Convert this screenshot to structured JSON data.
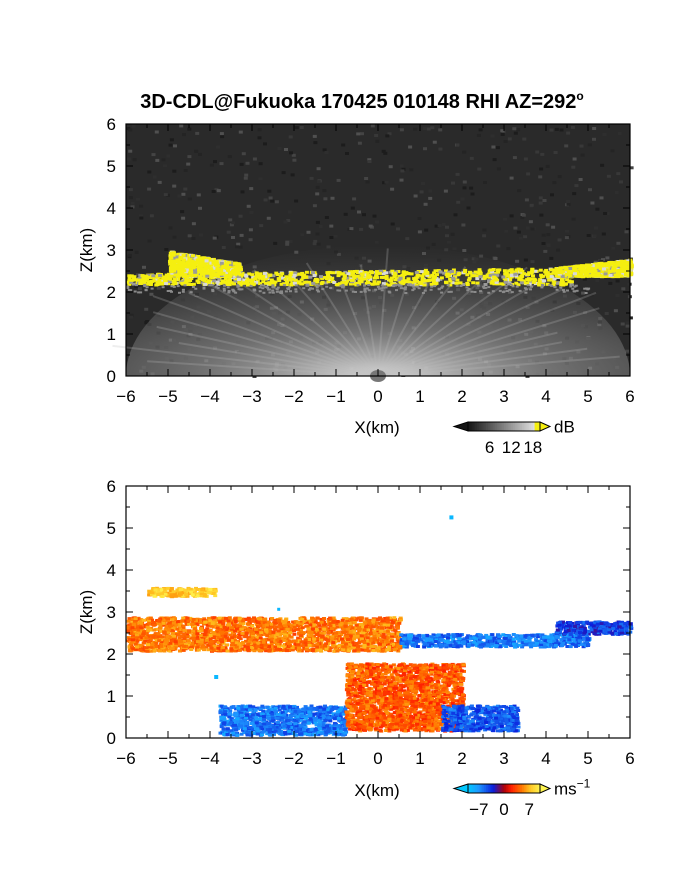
{
  "figure": {
    "title": "3D-CDL@Fukuoka 170425 010148 RHI AZ=292",
    "title_superscript": "o"
  },
  "chart_data": [
    {
      "type": "heatmap",
      "panel": "reflectivity",
      "xlabel": "X(km)",
      "ylabel": "Z(km)",
      "xlim": [
        -6,
        6
      ],
      "ylim": [
        0,
        6
      ],
      "xticks": [
        "-6",
        "-5",
        "-4",
        "-3",
        "-2",
        "-1",
        "0",
        "1",
        "2",
        "3",
        "4",
        "5",
        "6"
      ],
      "yticks": [
        "0",
        "1",
        "2",
        "3",
        "4",
        "5",
        "6"
      ],
      "colorbar": {
        "unit": "dB",
        "ticks": [
          "6",
          "12",
          "18"
        ],
        "range": [
          0,
          20
        ]
      },
      "background_color": "#2a2a2a",
      "highlight_color": "#f5ef10",
      "features": [
        {
          "name": "main layer",
          "x": [
            -6,
            4.6
          ],
          "z_bottom": [
            2.2,
            2.2
          ],
          "z_top": [
            2.45,
            2.6
          ]
        },
        {
          "name": "left elevated layer",
          "x": [
            -5,
            -3.3
          ],
          "z_bottom": [
            2.4,
            2.4
          ],
          "z_top": [
            3.0,
            2.7
          ]
        },
        {
          "name": "right elevated layer",
          "x": [
            4.2,
            6
          ],
          "z_bottom": [
            2.4,
            2.4
          ],
          "z_top": [
            2.6,
            2.8
          ]
        }
      ]
    },
    {
      "type": "heatmap",
      "panel": "doppler velocity",
      "xlabel": "X(km)",
      "ylabel": "Z(km)",
      "xlim": [
        -6,
        6
      ],
      "ylim": [
        0,
        6
      ],
      "xticks": [
        "-6",
        "-5",
        "-4",
        "-3",
        "-2",
        "-1",
        "0",
        "1",
        "2",
        "3",
        "4",
        "5",
        "6"
      ],
      "yticks": [
        "0",
        "1",
        "2",
        "3",
        "4",
        "5",
        "6"
      ],
      "colorbar": {
        "unit": "ms",
        "unit_exponent": "-1",
        "ticks": [
          "-7",
          "0",
          "7"
        ],
        "range": [
          -10,
          10
        ]
      },
      "features": [
        {
          "name": "upper layer west",
          "x": [
            -6,
            0.5
          ],
          "z": [
            2.1,
            2.9
          ],
          "velocity": 5
        },
        {
          "name": "upper layer east",
          "x": [
            0.5,
            5
          ],
          "z": [
            2.2,
            2.5
          ],
          "velocity": -6
        },
        {
          "name": "right layer",
          "x": [
            4.2,
            6
          ],
          "z": [
            2.5,
            2.8
          ],
          "velocity": -4
        },
        {
          "name": "top speckles",
          "x": [
            -5.5,
            -3.9
          ],
          "z": [
            3.4,
            3.6
          ],
          "velocity": 8
        },
        {
          "name": "boundary layer west",
          "x": [
            -3.8,
            -0.8
          ],
          "z": [
            0.1,
            0.8
          ],
          "velocity": -6
        },
        {
          "name": "boundary layer center",
          "x": [
            -0.8,
            2
          ],
          "z": [
            0.2,
            1.8
          ],
          "velocity": 4
        },
        {
          "name": "boundary layer east",
          "x": [
            1.5,
            3.3
          ],
          "z": [
            0.2,
            0.8
          ],
          "velocity": -5
        }
      ]
    }
  ]
}
